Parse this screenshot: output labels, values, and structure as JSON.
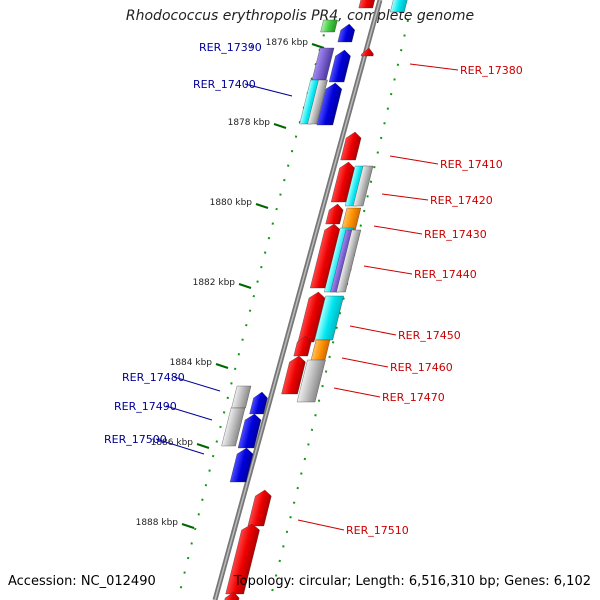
{
  "title": "Rhodococcus erythropolis PR4, complete genome",
  "footer": {
    "accession": "Accession: NC_012490",
    "summary": "Topology: circular; Length: 6,516,310 bp; Genes: 6,102"
  },
  "colors": {
    "red": "#ee0000",
    "blue": "#0000dd",
    "cyan": "#00e6f0",
    "purple": "#7a5fd0",
    "orange": "#ff9200",
    "gray": "#b8b8b8",
    "green": "#44cc44",
    "label_red": "#cc0000",
    "label_blue": "#000099",
    "tick_green": "#006600"
  },
  "scale_ticks": [
    {
      "label": "1876 kbp",
      "pos": 1876
    },
    {
      "label": "1878 kbp",
      "pos": 1878
    },
    {
      "label": "1880 kbp",
      "pos": 1880
    },
    {
      "label": "1882 kbp",
      "pos": 1882
    },
    {
      "label": "1884 kbp",
      "pos": 1884
    },
    {
      "label": "1886 kbp",
      "pos": 1886
    },
    {
      "label": "1888 kbp",
      "pos": 1888
    }
  ],
  "labels_right": [
    {
      "text": "RER_17380"
    },
    {
      "text": "RER_17410"
    },
    {
      "text": "RER_17420"
    },
    {
      "text": "RER_17430"
    },
    {
      "text": "RER_17440"
    },
    {
      "text": "RER_17450"
    },
    {
      "text": "RER_17460"
    },
    {
      "text": "RER_17470"
    },
    {
      "text": "RER_17510"
    }
  ],
  "labels_left": [
    {
      "text": "RER_17390"
    },
    {
      "text": "RER_17400"
    },
    {
      "text": "RER_17480"
    },
    {
      "text": "RER_17490"
    },
    {
      "text": "RER_17500"
    }
  ]
}
